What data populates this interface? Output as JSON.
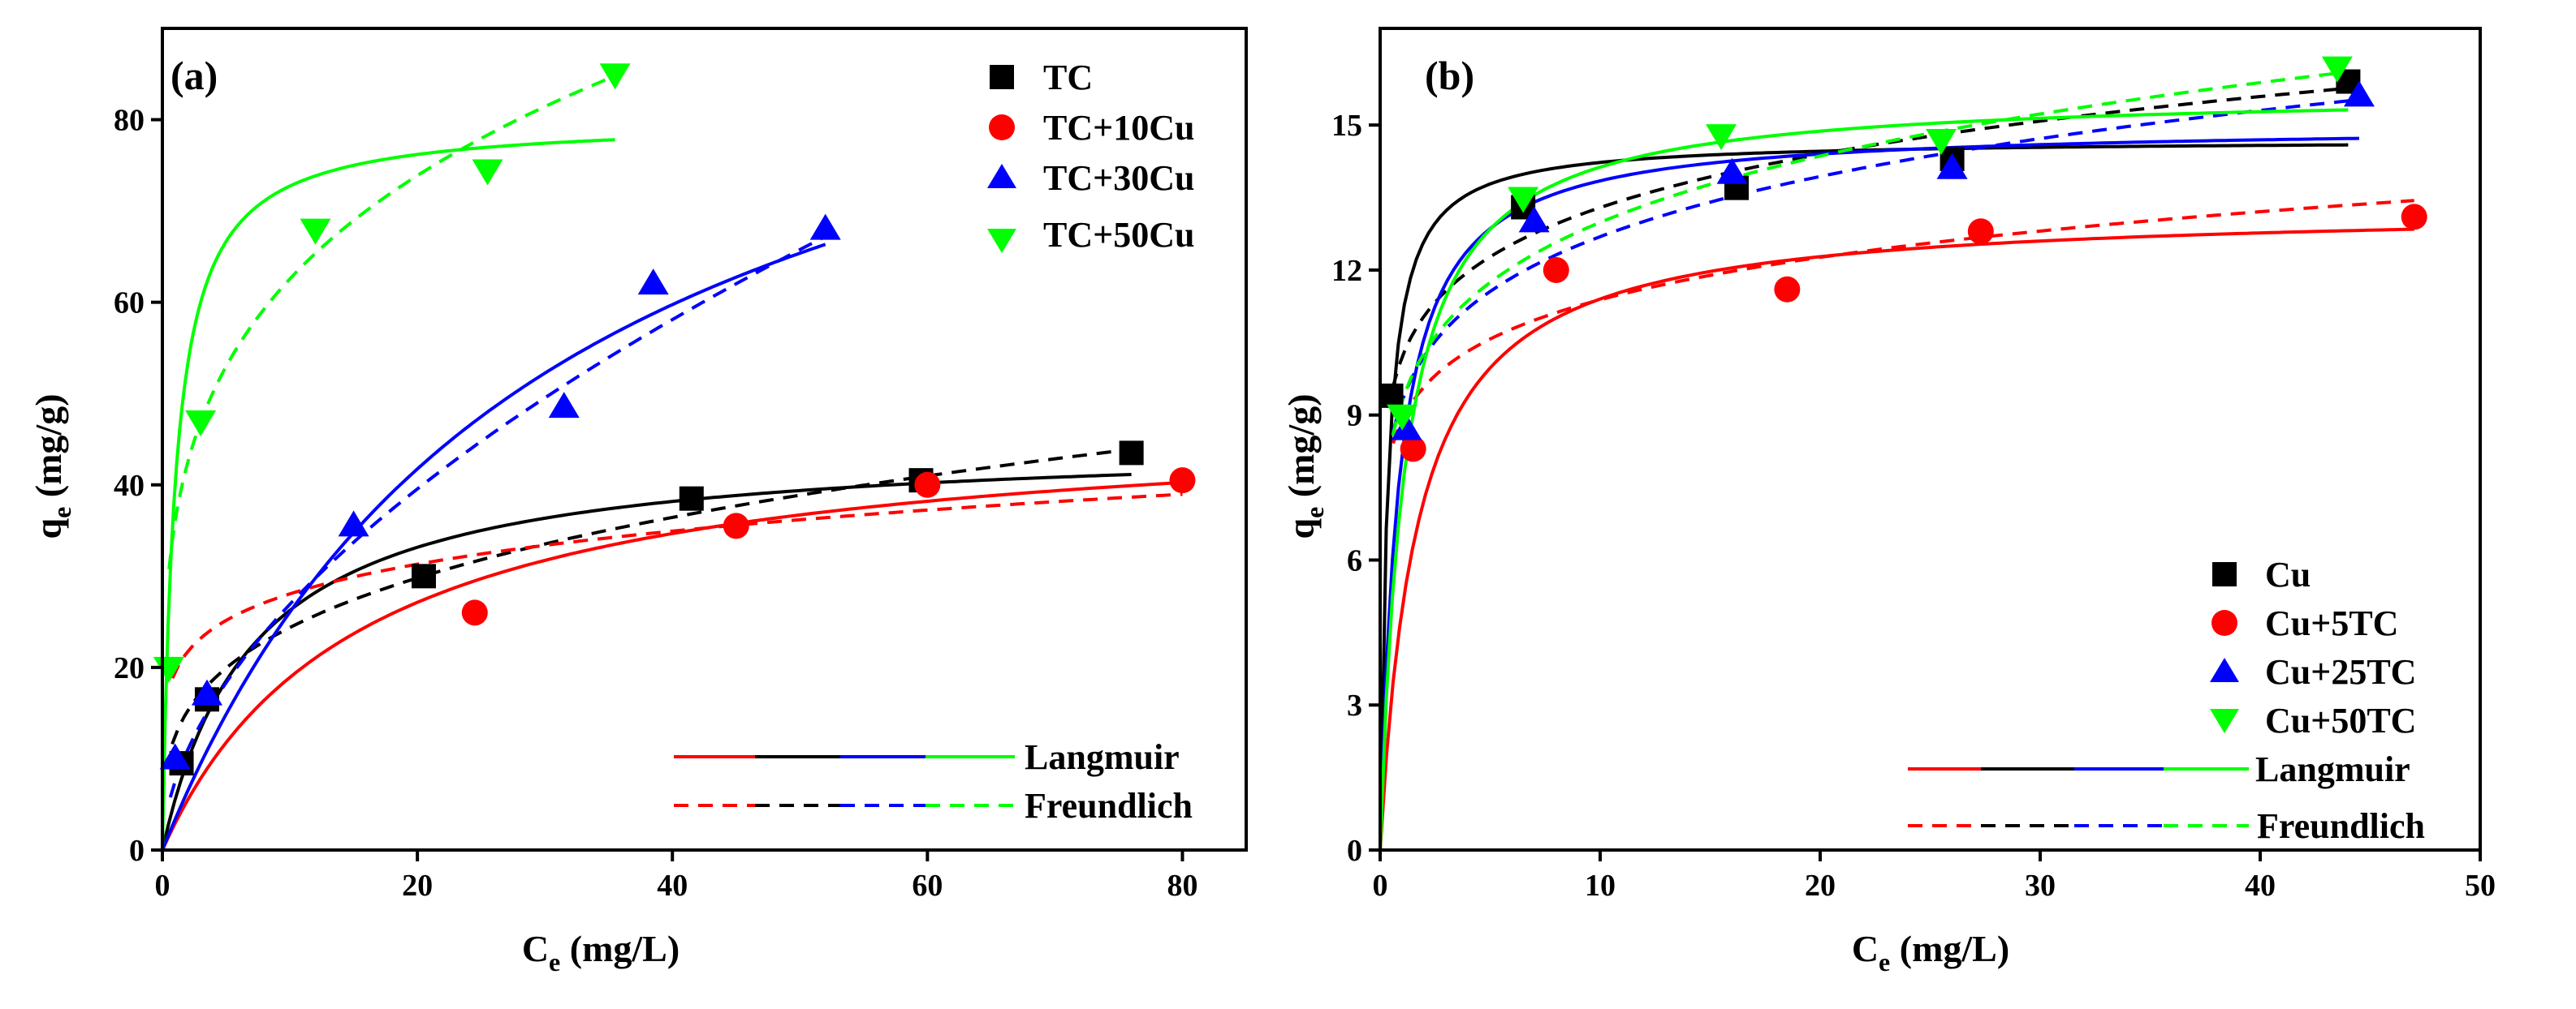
{
  "chart_data": [
    {
      "type": "scatter",
      "panel_label": "(a)",
      "xlabel_main": "C",
      "xlabel_sub": "e",
      "xlabel_unit": " (mg/L)",
      "ylabel_main": "q",
      "ylabel_sub": "e",
      "ylabel_unit": " (mg/g)",
      "xlim": [
        0,
        85
      ],
      "ylim": [
        0,
        90
      ],
      "xticks": [
        0,
        20,
        40,
        60,
        80
      ],
      "yticks": [
        0,
        20,
        40,
        60,
        80
      ],
      "series": [
        {
          "name": "TC",
          "color": "#000000",
          "marker": "square",
          "x": [
            1.5,
            3.5,
            20.5,
            41.5,
            59.5,
            76
          ],
          "y": [
            9.5,
            16.5,
            30,
            38.5,
            40.5,
            43.5
          ],
          "langmuir": {
            "qm": 45,
            "kl": 0.14,
            "xmax": 76
          },
          "freundlich": {
            "kf": 12.5,
            "n": 0.29,
            "xmax": 76
          }
        },
        {
          "name": "TC+10Cu",
          "color": "#ff0000",
          "marker": "circle",
          "x": [
            24.5,
            45,
            60,
            80
          ],
          "y": [
            26,
            35.5,
            40,
            40.5
          ],
          "langmuir": {
            "qm": 48,
            "kl": 0.065,
            "xmax": 80
          },
          "freundlich": {
            "kf": 19.5,
            "n": 0.158,
            "xmax": 80
          }
        },
        {
          "name": "TC+30Cu",
          "color": "#0000ff",
          "marker": "triangle-up",
          "x": [
            1,
            3.5,
            15,
            31.5,
            38.5,
            52
          ],
          "y": [
            10,
            17,
            35.5,
            48.5,
            62,
            68
          ],
          "langmuir": {
            "qm": 105,
            "kl": 0.033,
            "xmax": 52
          },
          "freundlich": {
            "kf": 7.5,
            "n": 0.555,
            "xmax": 52
          }
        },
        {
          "name": "TC+50Cu",
          "color": "#00ff00",
          "marker": "triangle-down",
          "x": [
            0.5,
            3,
            12,
            25.5,
            35.5
          ],
          "y": [
            20,
            47,
            68,
            74.5,
            85
          ],
          "langmuir": {
            "qm": 80,
            "kl": 1.0,
            "xmax": 35.5
          },
          "freundlich": {
            "kf": 36,
            "n": 0.24,
            "xmax": 35.5
          }
        }
      ],
      "fit_legend": {
        "langmuir": "Langmuir",
        "freundlich": "Freundlich"
      }
    },
    {
      "type": "scatter",
      "panel_label": "(b)",
      "xlabel_main": "C",
      "xlabel_sub": "e",
      "xlabel_unit": " (mg/L)",
      "ylabel_main": "q",
      "ylabel_sub": "e",
      "ylabel_unit": " (mg/g)",
      "xlim": [
        0,
        50
      ],
      "ylim": [
        0,
        17
      ],
      "xticks": [
        0,
        10,
        20,
        30,
        40,
        50
      ],
      "yticks": [
        0,
        3,
        6,
        9,
        12,
        15
      ],
      "series": [
        {
          "name": "Cu",
          "color": "#000000",
          "marker": "square",
          "x": [
            0.5,
            6.5,
            16.2,
            26,
            44
          ],
          "y": [
            9.4,
            13.3,
            13.7,
            14.3,
            15.9
          ],
          "langmuir": {
            "qm": 14.7,
            "kl": 3.0,
            "xmax": 44
          },
          "freundlich": {
            "kf": 10.2,
            "n": 0.115,
            "xmax": 44
          }
        },
        {
          "name": "Cu+5TC",
          "color": "#ff0000",
          "marker": "circle",
          "x": [
            1.5,
            8,
            18.5,
            27.3,
            47
          ],
          "y": [
            8.3,
            12,
            11.6,
            12.8,
            13.1
          ],
          "langmuir": {
            "qm": 13.3,
            "kl": 0.6,
            "xmax": 47
          },
          "freundlich": {
            "kf": 8.9,
            "n": 0.107,
            "xmax": 47
          }
        },
        {
          "name": "Cu+25TC",
          "color": "#0000ff",
          "marker": "triangle-up",
          "x": [
            1.2,
            7,
            16,
            26,
            44.5
          ],
          "y": [
            8.7,
            13,
            14,
            14.1,
            15.6
          ],
          "langmuir": {
            "qm": 15.0,
            "kl": 1.2,
            "xmax": 44.5
          },
          "freundlich": {
            "kf": 9.3,
            "n": 0.135,
            "xmax": 44.5
          }
        },
        {
          "name": "Cu+50TC",
          "color": "#00ff00",
          "marker": "triangle-down",
          "x": [
            1,
            6.5,
            15.5,
            25.5,
            43.5
          ],
          "y": [
            9,
            13.5,
            14.8,
            14.7,
            16.2
          ],
          "langmuir": {
            "qm": 15.7,
            "kl": 0.9,
            "xmax": 44
          },
          "freundlich": {
            "kf": 9.3,
            "n": 0.145,
            "xmax": 44
          }
        }
      ],
      "fit_legend": {
        "langmuir": "Langmuir",
        "freundlich": "Freundlich"
      }
    }
  ]
}
